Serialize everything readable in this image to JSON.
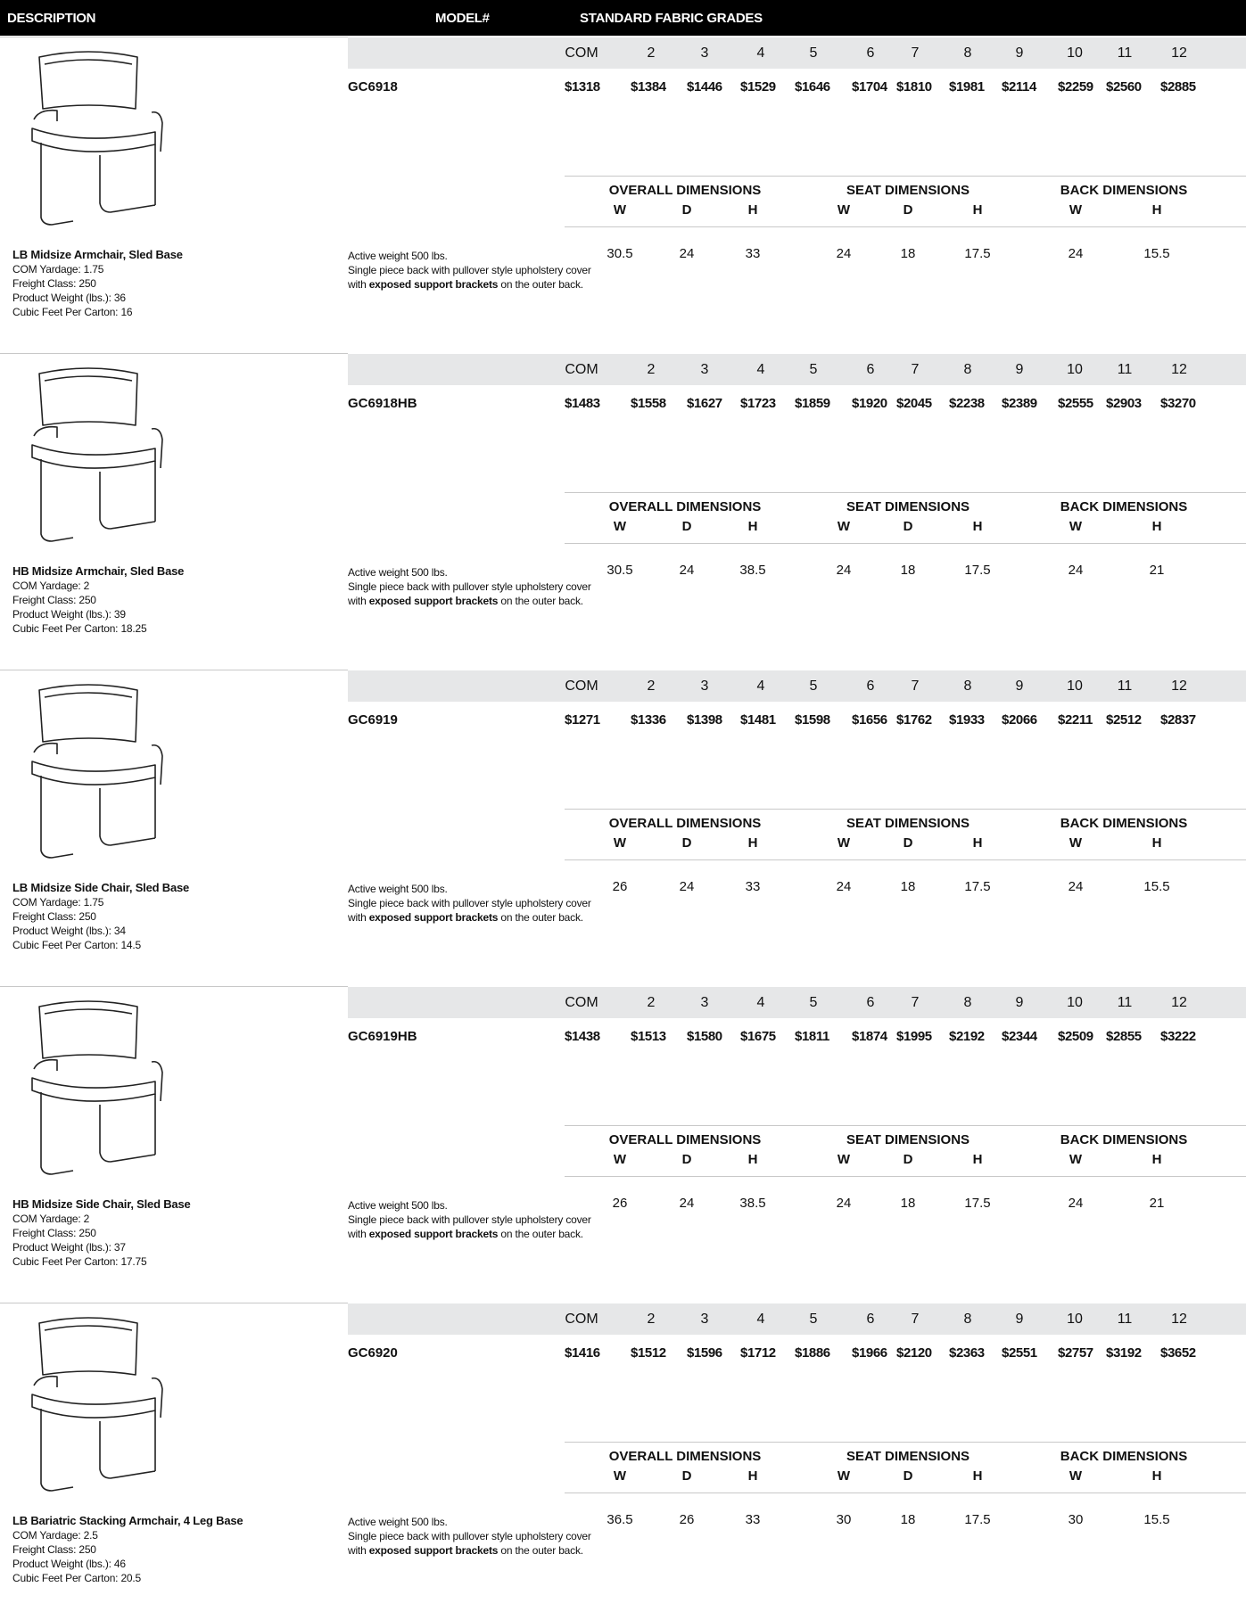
{
  "header": {
    "description": "DESCRIPTION",
    "model": "MODEL#",
    "grades": "STANDARD FABRIC GRADES"
  },
  "grade_labels": [
    "COM",
    "2",
    "3",
    "4",
    "5",
    "6",
    "7",
    "8",
    "9",
    "10",
    "11",
    "12"
  ],
  "dimension_groups": [
    {
      "title": "OVERALL DIMENSIONS",
      "columns": [
        "W",
        "D",
        "H"
      ]
    },
    {
      "title": "SEAT DIMENSIONS",
      "columns": [
        "W",
        "D",
        "H"
      ]
    },
    {
      "title": "BACK DIMENSIONS",
      "columns": [
        "W",
        "H"
      ]
    }
  ],
  "note": {
    "line1": "Active weight 500 lbs.",
    "line2": "Single piece back with pullover style upholstery cover",
    "line3_start": "with",
    "line3_bold": "exposed support brackets",
    "line3_end": "on the outer back."
  },
  "products": [
    {
      "model": "GC6918",
      "name": "LB Midsize Armchair, Sled Base",
      "specs": [
        "COM Yardage: 1.75",
        "Freight Class: 250",
        "Product Weight (lbs.): 36",
        "Cubic Feet Per Carton: 16"
      ],
      "prices": [
        "$1318",
        "$1384",
        "$1446",
        "$1529",
        "$1646",
        "$1704",
        "$1810",
        "$1981",
        "$2114",
        "$2259",
        "$2560",
        "$2885"
      ],
      "dimensions": [
        30.5,
        24,
        33,
        24,
        18,
        17.5,
        24,
        15.5
      ]
    },
    {
      "model": "GC6918HB",
      "name": "HB Midsize Armchair, Sled Base",
      "specs": [
        "COM Yardage: 2",
        "Freight Class: 250",
        "Product Weight (lbs.): 39",
        "Cubic Feet Per Carton: 18.25"
      ],
      "prices": [
        "$1483",
        "$1558",
        "$1627",
        "$1723",
        "$1859",
        "$1920",
        "$2045",
        "$2238",
        "$2389",
        "$2555",
        "$2903",
        "$3270"
      ],
      "dimensions": [
        30.5,
        24,
        38.5,
        24,
        18,
        17.5,
        24,
        21
      ]
    },
    {
      "model": "GC6919",
      "name": "LB Midsize Side Chair, Sled Base",
      "specs": [
        "COM Yardage: 1.75",
        "Freight Class: 250",
        "Product Weight (lbs.): 34",
        "Cubic Feet Per Carton: 14.5"
      ],
      "prices": [
        "$1271",
        "$1336",
        "$1398",
        "$1481",
        "$1598",
        "$1656",
        "$1762",
        "$1933",
        "$2066",
        "$2211",
        "$2512",
        "$2837"
      ],
      "dimensions": [
        26,
        24,
        33,
        24,
        18,
        17.5,
        24,
        15.5
      ]
    },
    {
      "model": "GC6919HB",
      "name": "HB Midsize Side Chair, Sled Base",
      "specs": [
        "COM Yardage: 2",
        "Freight Class: 250",
        "Product Weight (lbs.): 37",
        "Cubic Feet Per Carton: 17.75"
      ],
      "prices": [
        "$1438",
        "$1513",
        "$1580",
        "$1675",
        "$1811",
        "$1874",
        "$1995",
        "$2192",
        "$2344",
        "$2509",
        "$2855",
        "$3222"
      ],
      "dimensions": [
        26,
        24,
        38.5,
        24,
        18,
        17.5,
        24,
        21
      ]
    },
    {
      "model": "GC6920",
      "name": "LB Bariatric Stacking Armchair, 4 Leg Base",
      "specs": [
        "COM Yardage: 2.5",
        "Freight Class: 250",
        "Product Weight (lbs.): 46",
        "Cubic Feet Per Carton: 20.5"
      ],
      "prices": [
        "$1416",
        "$1512",
        "$1596",
        "$1712",
        "$1886",
        "$1966",
        "$2120",
        "$2363",
        "$2551",
        "$2757",
        "$3192",
        "$3652"
      ],
      "dimensions": [
        36.5,
        26,
        33,
        30,
        18,
        17.5,
        30,
        15.5
      ]
    }
  ]
}
